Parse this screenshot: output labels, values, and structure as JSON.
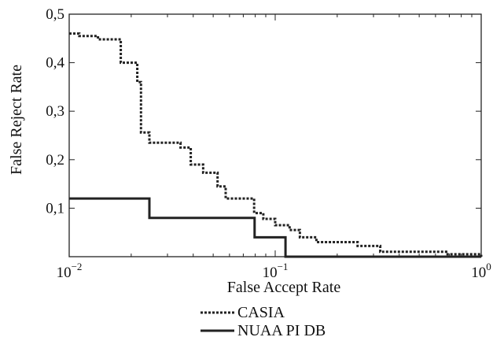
{
  "chart_data": {
    "type": "line",
    "xlabel": "False Accept Rate",
    "ylabel": "False Reject Rate",
    "xscale": "log",
    "xlim": [
      0.01,
      1
    ],
    "ylim": [
      0,
      0.5
    ],
    "x_ticks": [
      {
        "value": 0.01,
        "base": "10",
        "exp": "−2"
      },
      {
        "value": 0.1,
        "base": "10",
        "exp": "−1"
      },
      {
        "value": 1,
        "base": "10",
        "exp": "0"
      }
    ],
    "y_ticks": [
      {
        "value": 0.1,
        "label": "0,1"
      },
      {
        "value": 0.2,
        "label": "0,2"
      },
      {
        "value": 0.3,
        "label": "0,3"
      },
      {
        "value": 0.4,
        "label": "0,4"
      },
      {
        "value": 0.5,
        "label": "0,5"
      }
    ],
    "grid": false,
    "legend_position": "bottom-center",
    "series": [
      {
        "name": "CASIA",
        "style": "dotted",
        "color": "#222222",
        "x": [
          0.01,
          0.0112,
          0.0138,
          0.0178,
          0.0214,
          0.0223,
          0.0245,
          0.0347,
          0.0389,
          0.0447,
          0.0525,
          0.0575,
          0.079,
          0.0876,
          0.1,
          0.1175,
          0.1318,
          0.1585,
          0.2,
          0.2512,
          0.3236,
          0.5012,
          0.6761,
          1.0
        ],
        "y": [
          0.46,
          0.455,
          0.448,
          0.4,
          0.36,
          0.256,
          0.235,
          0.225,
          0.19,
          0.173,
          0.145,
          0.12,
          0.09,
          0.078,
          0.065,
          0.055,
          0.04,
          0.03,
          0.03,
          0.022,
          0.01,
          0.01,
          0.005,
          0.0
        ]
      },
      {
        "name": "NUAA PI DB",
        "style": "solid",
        "color": "#222222",
        "x": [
          0.01,
          0.0245,
          0.0708,
          0.0794,
          0.1122,
          1.0
        ],
        "y": [
          0.12,
          0.08,
          0.08,
          0.04,
          0.0,
          0.0
        ]
      }
    ]
  }
}
